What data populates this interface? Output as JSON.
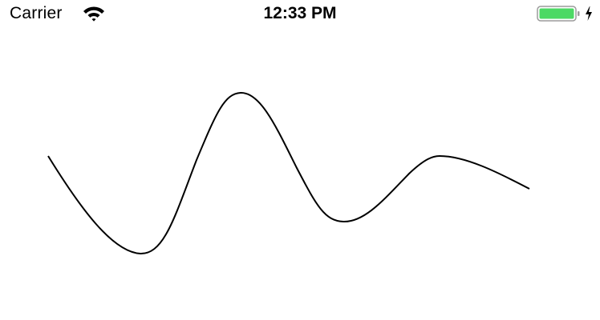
{
  "status_bar": {
    "carrier": "Carrier",
    "time": "12:33 PM",
    "battery_level": 1.0,
    "battery_color": "#4cd964",
    "charging": true,
    "icons": [
      "wifi-icon",
      "battery-icon",
      "charging-bolt-icon"
    ]
  },
  "content": {
    "line_color": "#000000",
    "background_color": "#ffffff"
  }
}
